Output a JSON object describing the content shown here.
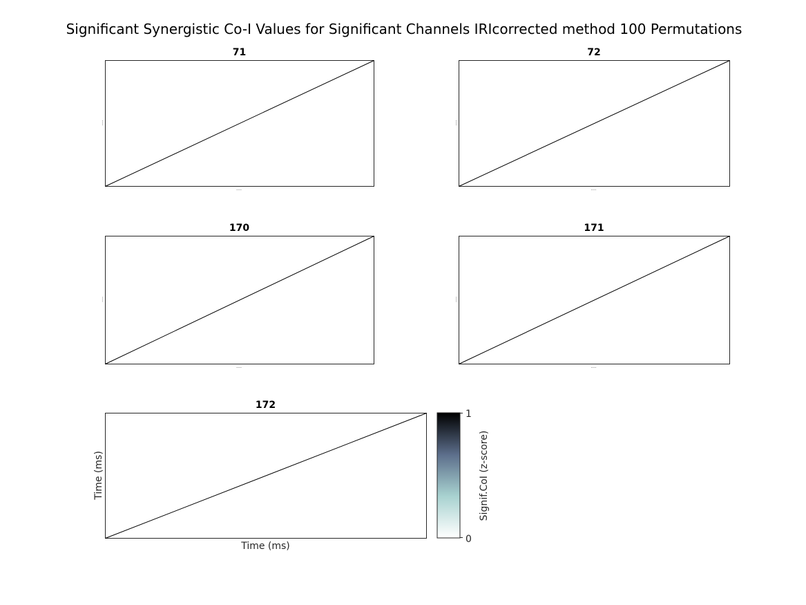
{
  "chart_data": {
    "type": "line",
    "title": "Significant Synergistic Co-I Values for Significant Channels IRIcorrected method 100 Permutations",
    "panels": [
      {
        "title": "71",
        "xlabel": "",
        "ylabel": "",
        "line": {
          "x": [
            0,
            1
          ],
          "y": [
            0,
            1
          ]
        }
      },
      {
        "title": "72",
        "xlabel": "",
        "ylabel": "",
        "line": {
          "x": [
            0,
            1
          ],
          "y": [
            0,
            1
          ]
        }
      },
      {
        "title": "170",
        "xlabel": "",
        "ylabel": "",
        "line": {
          "x": [
            0,
            1
          ],
          "y": [
            0,
            1
          ]
        }
      },
      {
        "title": "171",
        "xlabel": "",
        "ylabel": "",
        "line": {
          "x": [
            0,
            1
          ],
          "y": [
            0,
            1
          ]
        }
      },
      {
        "title": "172",
        "xlabel": "Time (ms)",
        "ylabel": "Time (ms)",
        "line": {
          "x": [
            0,
            1
          ],
          "y": [
            0,
            1
          ]
        }
      }
    ],
    "colorbar": {
      "label": "Signif.CoI (z-score)",
      "range": [
        0,
        1
      ],
      "tick_min": "0",
      "tick_max": "1",
      "colormap": "bone_r",
      "colors": [
        "#ffffff",
        "#a8d2d0",
        "#5c6e8b",
        "#000000"
      ]
    }
  }
}
